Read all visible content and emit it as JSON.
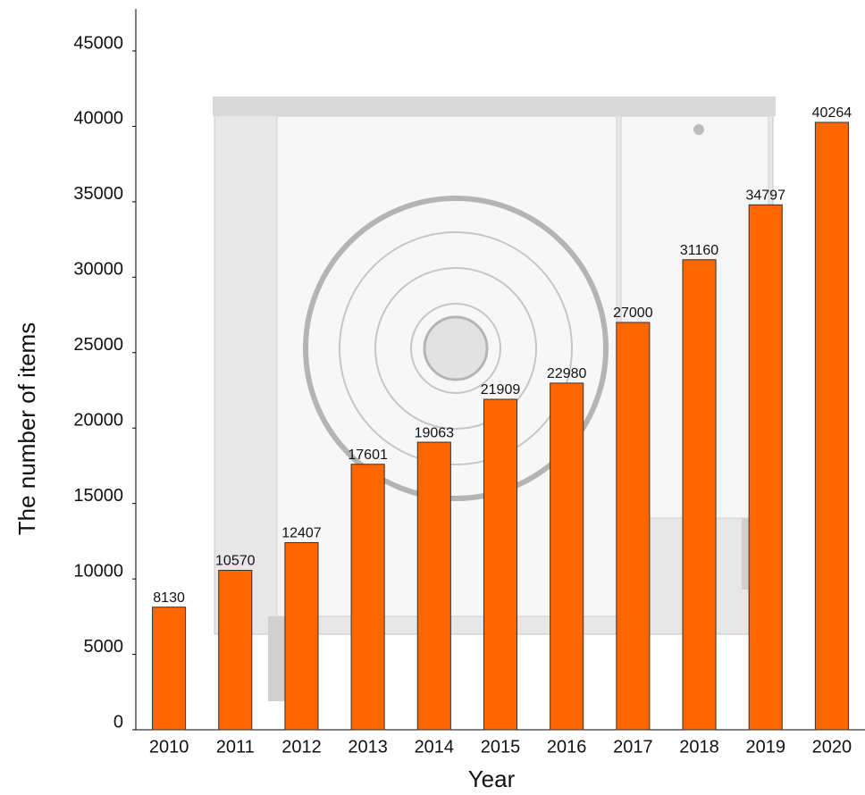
{
  "chart_data": {
    "type": "bar",
    "x_label": "Year",
    "y_label": "The number of items",
    "categories": [
      "2010",
      "2011",
      "2012",
      "2013",
      "2014",
      "2015",
      "2016",
      "2017",
      "2018",
      "2019",
      "2020"
    ],
    "values": [
      8130,
      10570,
      12407,
      17601,
      19063,
      21909,
      22980,
      27000,
      31160,
      34797,
      40264
    ],
    "color": "#ff6600",
    "ylim": [
      0,
      45000
    ],
    "yticks": [
      0,
      5000,
      10000,
      15000,
      20000,
      25000,
      30000,
      35000,
      40000,
      45000
    ],
    "grid": false
  }
}
